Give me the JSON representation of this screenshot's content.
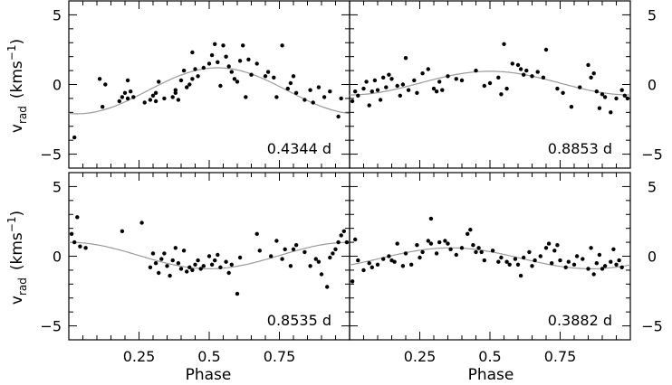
{
  "figure": {
    "ylabel": "v_rad (kms^-1)",
    "ylabel_main": "v",
    "ylabel_sub": "rad",
    "ylabel_unit_open": "(kms",
    "ylabel_unit_sup": "−1",
    "ylabel_unit_close": ")",
    "xlabel": "Phase"
  },
  "chart_data": [
    {
      "type": "scatter",
      "panel": "top-left",
      "annotation": "0.4344 d",
      "xlim": [
        0,
        1
      ],
      "ylim": [
        -6,
        6
      ],
      "x_ticks": [
        0.25,
        0.5,
        0.75
      ],
      "x_ticklabels": [],
      "y_ticks": [
        -5,
        0,
        5
      ],
      "y_ticklabels": [
        "−5",
        "0",
        "5"
      ],
      "y_labels_side": "left",
      "points": [
        [
          0.02,
          -3.8
        ],
        [
          0.11,
          0.4
        ],
        [
          0.13,
          0.0
        ],
        [
          0.12,
          -1.6
        ],
        [
          0.18,
          -1.2
        ],
        [
          0.19,
          -0.9
        ],
        [
          0.2,
          -0.6
        ],
        [
          0.21,
          -1.0
        ],
        [
          0.22,
          -0.5
        ],
        [
          0.21,
          0.3
        ],
        [
          0.23,
          -0.9
        ],
        [
          0.27,
          -1.3
        ],
        [
          0.29,
          -1.1
        ],
        [
          0.3,
          -0.8
        ],
        [
          0.31,
          -1.2
        ],
        [
          0.31,
          -0.6
        ],
        [
          0.32,
          0.2
        ],
        [
          0.34,
          -1.0
        ],
        [
          0.37,
          -0.9
        ],
        [
          0.38,
          -0.6
        ],
        [
          0.38,
          -0.4
        ],
        [
          0.39,
          -1.1
        ],
        [
          0.4,
          0.3
        ],
        [
          0.41,
          1.0
        ],
        [
          0.42,
          -0.2
        ],
        [
          0.43,
          0.0
        ],
        [
          0.44,
          0.4
        ],
        [
          0.45,
          1.1
        ],
        [
          0.44,
          2.3
        ],
        [
          0.46,
          0.6
        ],
        [
          0.48,
          1.2
        ],
        [
          0.5,
          1.5
        ],
        [
          0.51,
          2.1
        ],
        [
          0.52,
          2.9
        ],
        [
          0.53,
          1.6
        ],
        [
          0.55,
          2.8
        ],
        [
          0.54,
          -0.1
        ],
        [
          0.56,
          2.0
        ],
        [
          0.57,
          1.3
        ],
        [
          0.58,
          0.9
        ],
        [
          0.59,
          0.4
        ],
        [
          0.6,
          0.2
        ],
        [
          0.61,
          1.7
        ],
        [
          0.62,
          2.8
        ],
        [
          0.63,
          -0.9
        ],
        [
          0.64,
          1.8
        ],
        [
          0.65,
          0.7
        ],
        [
          0.67,
          1.5
        ],
        [
          0.7,
          0.6
        ],
        [
          0.71,
          0.9
        ],
        [
          0.73,
          0.5
        ],
        [
          0.74,
          -0.9
        ],
        [
          0.76,
          2.8
        ],
        [
          0.78,
          -0.3
        ],
        [
          0.79,
          0.1
        ],
        [
          0.8,
          0.6
        ],
        [
          0.81,
          -0.6
        ],
        [
          0.84,
          -1.1
        ],
        [
          0.86,
          -0.4
        ],
        [
          0.87,
          -1.3
        ],
        [
          0.89,
          -0.2
        ],
        [
          0.91,
          -0.9
        ],
        [
          0.93,
          -0.5
        ],
        [
          0.96,
          -2.3
        ],
        [
          0.97,
          -1.0
        ]
      ],
      "curve": {
        "mean": -0.45,
        "amplitude": 1.65,
        "peak_phase": 0.53
      }
    },
    {
      "type": "scatter",
      "panel": "top-right",
      "annotation": "0.8853 d",
      "xlim": [
        0,
        1
      ],
      "ylim": [
        -6,
        6
      ],
      "x_ticks": [
        0.25,
        0.5,
        0.75
      ],
      "x_ticklabels": [],
      "y_ticks": [
        -5,
        0,
        5
      ],
      "y_ticklabels": [
        "−5",
        "0",
        "5"
      ],
      "y_labels_side": "right",
      "points": [
        [
          0.01,
          -1.2
        ],
        [
          0.02,
          -0.5
        ],
        [
          0.03,
          -0.8
        ],
        [
          0.05,
          -0.3
        ],
        [
          0.06,
          0.2
        ],
        [
          0.07,
          -1.5
        ],
        [
          0.08,
          -0.5
        ],
        [
          0.09,
          0.3
        ],
        [
          0.1,
          -0.4
        ],
        [
          0.11,
          -1.1
        ],
        [
          0.12,
          0.5
        ],
        [
          0.13,
          -0.2
        ],
        [
          0.14,
          0.7
        ],
        [
          0.15,
          0.4
        ],
        [
          0.17,
          -0.1
        ],
        [
          0.18,
          -0.8
        ],
        [
          0.19,
          0.0
        ],
        [
          0.2,
          1.9
        ],
        [
          0.21,
          -0.4
        ],
        [
          0.23,
          0.3
        ],
        [
          0.24,
          -0.6
        ],
        [
          0.26,
          0.8
        ],
        [
          0.28,
          1.1
        ],
        [
          0.3,
          -0.3
        ],
        [
          0.31,
          -0.5
        ],
        [
          0.32,
          0.2
        ],
        [
          0.33,
          -0.4
        ],
        [
          0.35,
          0.6
        ],
        [
          0.38,
          0.4
        ],
        [
          0.4,
          0.3
        ],
        [
          0.45,
          1.0
        ],
        [
          0.48,
          -0.1
        ],
        [
          0.5,
          0.1
        ],
        [
          0.53,
          0.5
        ],
        [
          0.54,
          -0.7
        ],
        [
          0.55,
          2.9
        ],
        [
          0.56,
          -0.3
        ],
        [
          0.58,
          1.5
        ],
        [
          0.6,
          1.4
        ],
        [
          0.61,
          1.1
        ],
        [
          0.62,
          0.7
        ],
        [
          0.63,
          1.0
        ],
        [
          0.65,
          0.6
        ],
        [
          0.67,
          0.9
        ],
        [
          0.69,
          0.5
        ],
        [
          0.7,
          2.5
        ],
        [
          0.74,
          -0.3
        ],
        [
          0.76,
          -0.6
        ],
        [
          0.79,
          -1.6
        ],
        [
          0.82,
          -0.2
        ],
        [
          0.85,
          1.4
        ],
        [
          0.86,
          0.5
        ],
        [
          0.87,
          0.8
        ],
        [
          0.88,
          -0.5
        ],
        [
          0.89,
          -1.7
        ],
        [
          0.9,
          -0.7
        ],
        [
          0.91,
          -0.9
        ],
        [
          0.93,
          -2.0
        ],
        [
          0.95,
          -1.0
        ],
        [
          0.97,
          -0.4
        ],
        [
          0.98,
          -0.8
        ],
        [
          0.99,
          -1.0
        ]
      ],
      "curve": {
        "mean": 0.1,
        "amplitude": 0.85,
        "peak_phase": 0.5
      }
    },
    {
      "type": "scatter",
      "panel": "bottom-left",
      "annotation": "0.8535 d",
      "xlim": [
        0,
        1
      ],
      "ylim": [
        -6,
        6
      ],
      "x_ticks": [
        0.25,
        0.5,
        0.75
      ],
      "x_ticklabels": [
        "0.25",
        "0.5",
        "0.75"
      ],
      "y_ticks": [
        -5,
        0,
        5
      ],
      "y_ticklabels": [
        "−5",
        "0",
        "5"
      ],
      "y_labels_side": "left",
      "points": [
        [
          0.01,
          1.6
        ],
        [
          0.02,
          1.0
        ],
        [
          0.03,
          2.8
        ],
        [
          0.04,
          0.7
        ],
        [
          0.06,
          0.6
        ],
        [
          0.19,
          1.8
        ],
        [
          0.26,
          2.4
        ],
        [
          0.29,
          -0.8
        ],
        [
          0.3,
          0.2
        ],
        [
          0.31,
          -0.5
        ],
        [
          0.32,
          -1.2
        ],
        [
          0.33,
          -0.2
        ],
        [
          0.34,
          0.2
        ],
        [
          0.35,
          -0.7
        ],
        [
          0.36,
          -1.4
        ],
        [
          0.37,
          -0.3
        ],
        [
          0.38,
          0.6
        ],
        [
          0.39,
          -0.5
        ],
        [
          0.4,
          -0.9
        ],
        [
          0.41,
          0.4
        ],
        [
          0.42,
          -1.1
        ],
        [
          0.43,
          -0.8
        ],
        [
          0.44,
          -1.0
        ],
        [
          0.45,
          -0.6
        ],
        [
          0.46,
          -0.3
        ],
        [
          0.47,
          -0.9
        ],
        [
          0.48,
          -0.7
        ],
        [
          0.5,
          0.0
        ],
        [
          0.51,
          -0.6
        ],
        [
          0.52,
          -0.3
        ],
        [
          0.53,
          0.1
        ],
        [
          0.54,
          -0.8
        ],
        [
          0.56,
          -0.4
        ],
        [
          0.57,
          -1.2
        ],
        [
          0.58,
          -0.6
        ],
        [
          0.6,
          -2.7
        ],
        [
          0.61,
          -0.1
        ],
        [
          0.67,
          1.6
        ],
        [
          0.68,
          0.4
        ],
        [
          0.72,
          0.0
        ],
        [
          0.74,
          1.1
        ],
        [
          0.76,
          -0.2
        ],
        [
          0.77,
          0.5
        ],
        [
          0.79,
          -0.7
        ],
        [
          0.8,
          0.5
        ],
        [
          0.81,
          0.8
        ],
        [
          0.84,
          0.3
        ],
        [
          0.86,
          -0.7
        ],
        [
          0.88,
          -0.2
        ],
        [
          0.89,
          -0.4
        ],
        [
          0.9,
          -1.3
        ],
        [
          0.92,
          -2.2
        ],
        [
          0.93,
          -0.1
        ],
        [
          0.94,
          0.2
        ],
        [
          0.95,
          0.5
        ],
        [
          0.96,
          1.0
        ],
        [
          0.97,
          1.5
        ],
        [
          0.98,
          1.8
        ],
        [
          0.99,
          1.0
        ]
      ],
      "curve": {
        "mean": 0.05,
        "amplitude": 0.95,
        "peak_phase": 0.0
      }
    },
    {
      "type": "scatter",
      "panel": "bottom-right",
      "annotation": "0.3882 d",
      "xlim": [
        0,
        1
      ],
      "ylim": [
        -6,
        6
      ],
      "x_ticks": [
        0.25,
        0.5,
        0.75
      ],
      "x_ticklabels": [
        "0.25",
        "0.5",
        "0.75"
      ],
      "y_ticks": [
        -5,
        0,
        5
      ],
      "y_ticklabels": [
        "−5",
        "0",
        "5"
      ],
      "y_labels_side": "right",
      "points": [
        [
          0.01,
          -1.8
        ],
        [
          0.02,
          1.2
        ],
        [
          0.03,
          -0.3
        ],
        [
          0.05,
          -1.0
        ],
        [
          0.07,
          -0.5
        ],
        [
          0.08,
          -0.8
        ],
        [
          0.1,
          -0.6
        ],
        [
          0.12,
          -0.2
        ],
        [
          0.14,
          0.0
        ],
        [
          0.15,
          -0.3
        ],
        [
          0.16,
          -0.4
        ],
        [
          0.17,
          0.9
        ],
        [
          0.19,
          -0.7
        ],
        [
          0.2,
          0.2
        ],
        [
          0.22,
          -0.6
        ],
        [
          0.24,
          0.8
        ],
        [
          0.25,
          -0.1
        ],
        [
          0.26,
          0.3
        ],
        [
          0.28,
          1.1
        ],
        [
          0.29,
          0.9
        ],
        [
          0.29,
          2.7
        ],
        [
          0.31,
          0.2
        ],
        [
          0.32,
          1.0
        ],
        [
          0.34,
          1.1
        ],
        [
          0.35,
          0.9
        ],
        [
          0.36,
          0.5
        ],
        [
          0.38,
          0.1
        ],
        [
          0.4,
          0.6
        ],
        [
          0.42,
          1.6
        ],
        [
          0.43,
          1.9
        ],
        [
          0.44,
          0.8
        ],
        [
          0.45,
          0.3
        ],
        [
          0.46,
          0.6
        ],
        [
          0.47,
          0.3
        ],
        [
          0.48,
          -0.3
        ],
        [
          0.51,
          0.4
        ],
        [
          0.53,
          -0.4
        ],
        [
          0.54,
          -0.1
        ],
        [
          0.56,
          -0.4
        ],
        [
          0.57,
          -0.6
        ],
        [
          0.59,
          -0.2
        ],
        [
          0.6,
          -0.6
        ],
        [
          0.61,
          -1.4
        ],
        [
          0.62,
          -0.1
        ],
        [
          0.64,
          0.3
        ],
        [
          0.65,
          -0.7
        ],
        [
          0.66,
          -0.3
        ],
        [
          0.68,
          0.0
        ],
        [
          0.7,
          0.6
        ],
        [
          0.71,
          0.9
        ],
        [
          0.72,
          -0.5
        ],
        [
          0.73,
          0.4
        ],
        [
          0.74,
          0.8
        ],
        [
          0.75,
          -0.3
        ],
        [
          0.77,
          -0.8
        ],
        [
          0.78,
          -0.4
        ],
        [
          0.8,
          -0.6
        ],
        [
          0.81,
          0.0
        ],
        [
          0.83,
          -0.2
        ],
        [
          0.85,
          -0.9
        ],
        [
          0.86,
          0.6
        ],
        [
          0.87,
          -1.3
        ],
        [
          0.88,
          -0.5
        ],
        [
          0.89,
          0.1
        ],
        [
          0.9,
          -0.9
        ],
        [
          0.91,
          -0.7
        ],
        [
          0.93,
          -0.4
        ],
        [
          0.94,
          0.5
        ],
        [
          0.95,
          -0.6
        ],
        [
          0.96,
          -0.3
        ],
        [
          0.97,
          -0.8
        ]
      ],
      "curve": {
        "mean": -0.15,
        "amplitude": 0.75,
        "peak_phase": 0.36
      }
    }
  ]
}
